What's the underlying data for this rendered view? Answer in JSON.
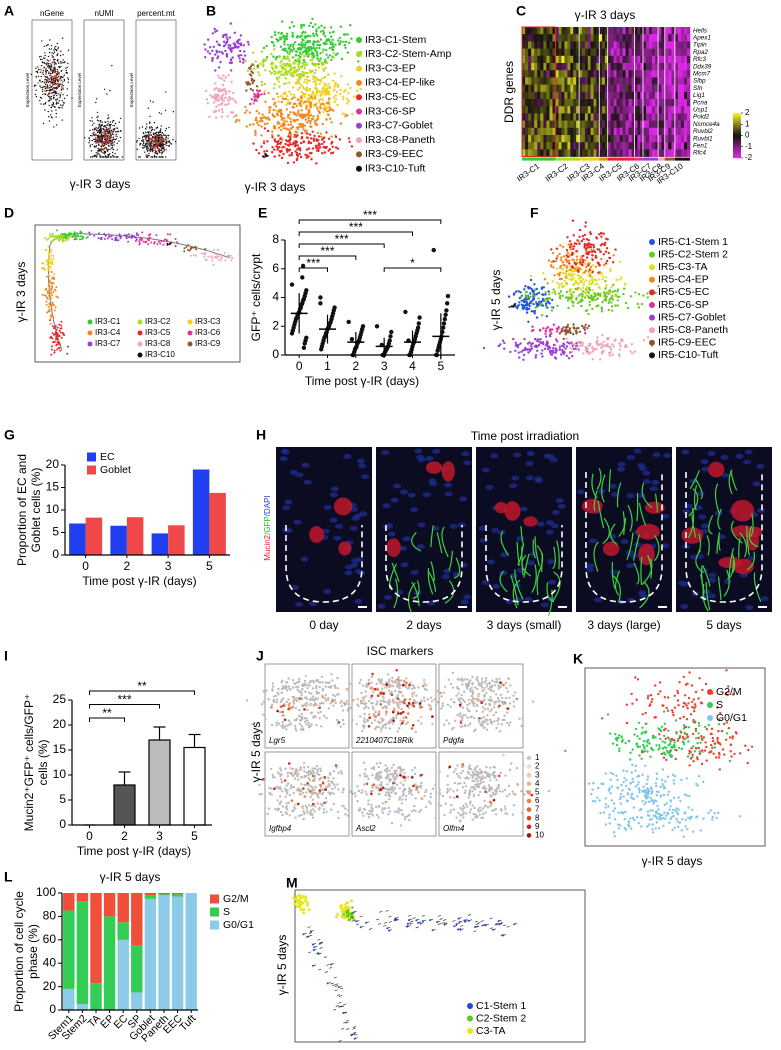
{
  "figure": {
    "A": {
      "label": "A",
      "plots": [
        {
          "title": "nGene"
        },
        {
          "title": "nUMI"
        },
        {
          "title": "percent.mt"
        }
      ],
      "ylabel": "Expression Level",
      "caption": "γ-IR 3 days"
    },
    "B": {
      "label": "B",
      "caption": "γ-IR 3 days",
      "clusters": [
        {
          "name": "IR3-C1-Stem",
          "color": "#33cc33"
        },
        {
          "name": "IR3-C2-Stem-Amp",
          "color": "#aadd22"
        },
        {
          "name": "IR3-C3-EP",
          "color": "#f2cf1e"
        },
        {
          "name": "IR3-C4-EP-like",
          "color": "#f08a20"
        },
        {
          "name": "IR3-C5-EC",
          "color": "#e8262a"
        },
        {
          "name": "IR3-C6-SP",
          "color": "#e0309a"
        },
        {
          "name": "IR3-C7-Goblet",
          "color": "#9b3fd0"
        },
        {
          "name": "IR3-C8-Paneth",
          "color": "#f2a5b8"
        },
        {
          "name": "IR3-C9-EEC",
          "color": "#8b5a2b"
        },
        {
          "name": "IR3-C10-Tuft",
          "color": "#111111"
        }
      ]
    },
    "C": {
      "label": "C",
      "title": "γ-IR 3 days",
      "ylabel": "DDR genes",
      "genes": [
        "Hells",
        "Apex1",
        "Tipin",
        "Rpa2",
        "Rfc3",
        "Ddx39",
        "Mcm7",
        "Slbp",
        "Sfn",
        "Lig1",
        "Pcna",
        "Usp1",
        "Pold2",
        "Nsmce4a",
        "Ruvbl2",
        "Ruvbl1",
        "Fen1",
        "Rfc4"
      ],
      "clusters": [
        "IR3-C1",
        "IR3-C2",
        "IR3-C3",
        "IR3-C4",
        "IR3-C5",
        "IR3-C6",
        "IR3-C7",
        "IR3-C8",
        "IR3-C9",
        "IR3-C10"
      ],
      "colorbar_ticks": [
        2,
        1,
        0,
        -1,
        -2
      ]
    },
    "D": {
      "label": "D",
      "side_label": "γ-IR 3 days",
      "legend": [
        "IR3-C1",
        "IR3-C2",
        "IR3-C3",
        "IR3-C4",
        "IR3-C5",
        "IR3-C6",
        "IR3-C7",
        "IR3-C8",
        "IR3-C9",
        "IR3-C10"
      ]
    },
    "F": {
      "label": "F",
      "side_label": "γ-IR 5 days",
      "clusters": [
        {
          "name": "IR5-C1-Stem 1",
          "color": "#2255dd"
        },
        {
          "name": "IR5-C2-Stem 2",
          "color": "#66cc22"
        },
        {
          "name": "IR5-C3-TA",
          "color": "#e6dc20"
        },
        {
          "name": "IR5-C4-EP",
          "color": "#f08a20"
        },
        {
          "name": "IR5-C5-EC",
          "color": "#e8262a"
        },
        {
          "name": "IR5-C6-SP",
          "color": "#e0309a"
        },
        {
          "name": "IR5-C7-Goblet",
          "color": "#9b3fd0"
        },
        {
          "name": "IR5-C8-Paneth",
          "color": "#f2a5b8"
        },
        {
          "name": "IR5-C9-EEC",
          "color": "#8b5a2b"
        },
        {
          "name": "IR5-C10-Tuft",
          "color": "#111111"
        }
      ]
    },
    "H": {
      "label": "H",
      "title": "Time post irradiation",
      "side_label": [
        {
          "text": "Mucin2",
          "color": "#e02020"
        },
        {
          "text": "/GFP",
          "color": "#22bb22"
        },
        {
          "text": "/DAPI",
          "color": "#2244dd"
        }
      ],
      "images": [
        "0 day",
        "2 days",
        "3 days (small)",
        "3 days (large)",
        "5 days"
      ]
    },
    "J": {
      "label": "J",
      "title": "ISC markers",
      "side_label": "γ-IR 5 days",
      "genes": [
        "Lgr5",
        "2210407C18Rik",
        "Pdgfa",
        "Igfbp4",
        "Ascl2",
        "Olfm4"
      ],
      "scale": [
        1,
        2,
        3,
        4,
        5,
        6,
        7,
        8,
        9,
        10
      ],
      "scale_colors": [
        "#cccccc",
        "#f6dcc8",
        "#f5c7a6",
        "#f3b285",
        "#f09c66",
        "#ec8248",
        "#e4662f",
        "#d8481c",
        "#c62c10",
        "#b01008"
      ]
    },
    "K": {
      "label": "K",
      "caption": "γ-IR 5 days",
      "legend": [
        {
          "name": "G2/M",
          "color": "#e8432a"
        },
        {
          "name": "S",
          "color": "#33cc55"
        },
        {
          "name": "G0/G1",
          "color": "#7fc6e8"
        }
      ]
    },
    "M": {
      "label": "M",
      "side_label": "γ-IR 5 days",
      "legend": [
        {
          "name": "C1-Stem 1",
          "color": "#2244dd"
        },
        {
          "name": "C2-Stem 2",
          "color": "#55cc22"
        },
        {
          "name": "C3-TA",
          "color": "#e8e820"
        }
      ]
    }
  },
  "chart_data": [
    {
      "type": "dot",
      "label": "E",
      "categories": [
        "0",
        "1",
        "2",
        "3",
        "4",
        "5"
      ],
      "points": [
        [
          4.9,
          4.5,
          4.3,
          4.1,
          3.9,
          3.8,
          3.6,
          3.5,
          3.3,
          3.2,
          3.0,
          2.9,
          2.8,
          2.6,
          2.5,
          2.3,
          2.1,
          1.9,
          1.7,
          1.5,
          1.2,
          1.0,
          0.8,
          0.5,
          6.2,
          5.4
        ],
        [
          3.6,
          3.3,
          3.1,
          2.9,
          2.7,
          2.5,
          2.3,
          2.2,
          2.0,
          1.9,
          1.8,
          1.6,
          1.5,
          1.3,
          1.2,
          1.0,
          0.8,
          0.6,
          0.4,
          4.0
        ],
        [
          2.3,
          2.0,
          1.8,
          1.6,
          1.4,
          1.2,
          1.0,
          0.9,
          0.8,
          0.6,
          0.5,
          0.4,
          0.2,
          0,
          0,
          1.1
        ],
        [
          2.0,
          1.6,
          1.3,
          1.0,
          0.8,
          0.6,
          0.5,
          0.4,
          0.3,
          0.2,
          0,
          0,
          0,
          0.7
        ],
        [
          3.0,
          2.6,
          2.2,
          1.9,
          1.7,
          1.5,
          1.3,
          1.1,
          0.9,
          0.8,
          0.6,
          0.4,
          0.2,
          0,
          0,
          1.0
        ],
        [
          7.3,
          4.1,
          3.6,
          3.1,
          2.8,
          2.5,
          2.2,
          1.9,
          1.6,
          1.3,
          1.1,
          0.9,
          0.7,
          0.5,
          0.3,
          0,
          0
        ]
      ],
      "values": [
        2.9,
        1.8,
        0.9,
        0.6,
        0.9,
        1.3
      ],
      "errors": [
        1.4,
        1.0,
        0.7,
        0.6,
        0.8,
        1.6
      ],
      "color": "#111111",
      "ylim": [
        0,
        8
      ],
      "yticks": [
        0,
        2,
        4,
        6,
        8
      ],
      "ylabel": [
        "GFP⁺ cells/crypt"
      ],
      "xlabel": "Time post γ-IR (days)",
      "significance": [
        {
          "from": 0,
          "to": 1,
          "label": "***"
        },
        {
          "from": 0,
          "to": 2,
          "label": "***"
        },
        {
          "from": 0,
          "to": 3,
          "label": "***"
        },
        {
          "from": 0,
          "to": 4,
          "label": "***"
        },
        {
          "from": 0,
          "to": 5,
          "label": "***"
        },
        {
          "from": 3,
          "to": 5,
          "label": "*"
        }
      ]
    },
    {
      "type": "bar",
      "label": "G",
      "categories": [
        "0",
        "2",
        "3",
        "5"
      ],
      "series": [
        {
          "name": "EC",
          "color": "#1f3ff0",
          "values": [
            7,
            6.5,
            4.8,
            19
          ]
        },
        {
          "name": "Goblet",
          "color": "#f04848",
          "values": [
            8.3,
            8.4,
            6.6,
            13.8
          ]
        }
      ],
      "ylim": [
        0,
        20
      ],
      "yticks": [
        0,
        5,
        10,
        15,
        20
      ],
      "legend": "upper left",
      "ylabel": [
        "Proportion of EC and",
        "Goblet cells (%)"
      ],
      "xlabel": "Time post γ-IR (days)"
    },
    {
      "type": "bar",
      "label": "I",
      "categories": [
        "0",
        "2",
        "3",
        "5"
      ],
      "values": [
        0,
        8,
        17,
        15.5
      ],
      "errors": [
        0,
        2.6,
        2.6,
        2.6
      ],
      "colors": [
        "#555555",
        "#555555",
        "#bbbbbb",
        "#ffffff"
      ],
      "ylim": [
        0,
        25
      ],
      "yticks": [
        0,
        5,
        10,
        15,
        20,
        25
      ],
      "ylabel": [
        "Mucin2⁺GFP⁺ cells/GFP⁺",
        "cells (%)"
      ],
      "xlabel": "Time post γ-IR (days)",
      "significance": [
        {
          "from": 0,
          "to": 1,
          "label": "**"
        },
        {
          "from": 0,
          "to": 2,
          "label": "***"
        },
        {
          "from": 0,
          "to": 3,
          "label": "**"
        }
      ]
    },
    {
      "type": "stacked_bar",
      "label": "L",
      "title": "γ-IR 5 days",
      "categories": [
        "Stem1",
        "Stem2",
        "TA",
        "EP",
        "EC",
        "SP",
        "Goblet",
        "Paneth",
        "EEC",
        "Tuft"
      ],
      "series": [
        {
          "name": "G2/M",
          "color": "#f0503a",
          "values": [
            15,
            7,
            77,
            20,
            25,
            45,
            2,
            1,
            1,
            0
          ]
        },
        {
          "name": "S",
          "color": "#33cc55",
          "values": [
            67,
            88,
            23,
            80,
            15,
            40,
            3,
            1,
            2,
            0
          ]
        },
        {
          "name": "G0/G1",
          "color": "#8ccbe8",
          "values": [
            18,
            5,
            0,
            0,
            60,
            15,
            95,
            98,
            97,
            100
          ]
        }
      ],
      "ylim": [
        0,
        100
      ],
      "yticks": [
        0,
        20,
        40,
        60,
        80,
        100
      ],
      "legend": "outside right",
      "ylabel": [
        "Proportion of cell cycle",
        "phase (%)"
      ]
    }
  ]
}
